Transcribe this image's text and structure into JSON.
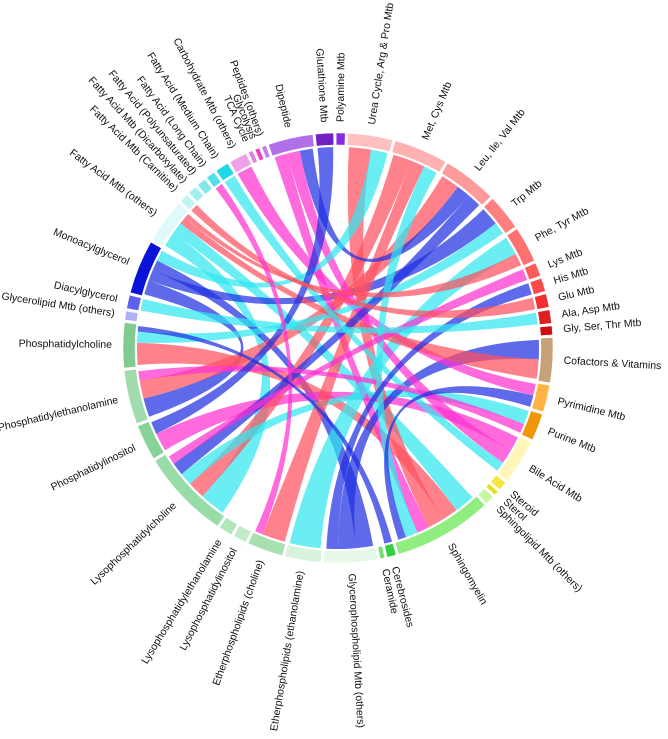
{
  "chart_data": {
    "type": "chord",
    "sectors": [
      {
        "name": "Polyamine Mtb",
        "color": "#8a2be2",
        "value": 2
      },
      {
        "name": "Urea Cycle, Arg & Pro Mtb",
        "color": "#ffc0c0",
        "value": 10
      },
      {
        "name": "Met, Cys Mtb",
        "color": "#ffb0b0",
        "value": 12
      },
      {
        "name": "Leu, Ile, Val Mtb",
        "color": "#ff9a9a",
        "value": 12
      },
      {
        "name": "Trp Mtb",
        "color": "#ff8080",
        "value": 8
      },
      {
        "name": "Phe, Tyr Mtb",
        "color": "#ff7070",
        "value": 8
      },
      {
        "name": "Lys Mtb",
        "color": "#ff5a5a",
        "value": 3
      },
      {
        "name": "His Mtb",
        "color": "#ff4848",
        "value": 3
      },
      {
        "name": "Glu Mtb",
        "color": "#f03030",
        "value": 3
      },
      {
        "name": "Ala, Asp Mtb",
        "color": "#e02020",
        "value": 3
      },
      {
        "name": "Gly, Ser, Thr Mtb",
        "color": "#d01010",
        "value": 2
      },
      {
        "name": "Cofactors & Vitamins",
        "color": "#c8a07a",
        "value": 10
      },
      {
        "name": "Pyrimidine Mtb",
        "color": "#ffb347",
        "value": 6
      },
      {
        "name": "Purine Mtb",
        "color": "#f0960a",
        "value": 6
      },
      {
        "name": "Bile Acid Mtb",
        "color": "#fff6b8",
        "value": 10
      },
      {
        "name": "Steroid",
        "color": "#f5e642",
        "value": 2
      },
      {
        "name": "Sterol",
        "color": "#e8e020",
        "value": 1
      },
      {
        "name": "Sphingolipid Mtb (others)",
        "color": "#c8f5a0",
        "value": 2
      },
      {
        "name": "Sphingomyelin",
        "color": "#90ee80",
        "value": 22
      },
      {
        "name": "Cerebrosides",
        "color": "#30d040",
        "value": 2
      },
      {
        "name": "Ceramide",
        "color": "#70e070",
        "value": 1
      },
      {
        "name": "Glycerophospholipid Mtb (others)",
        "color": "#e8f8e8",
        "value": 12
      },
      {
        "name": "Etherphospholipids (ethanolamine)",
        "color": "#d8f2dc",
        "value": 8
      },
      {
        "name": "Etherphospholipids (choline)",
        "color": "#a8e0b0",
        "value": 8
      },
      {
        "name": "Lysophosphatidylinositol",
        "color": "#c0ecc8",
        "value": 3
      },
      {
        "name": "Lysophosphatidylethanolamine",
        "color": "#b0e6bc",
        "value": 3
      },
      {
        "name": "Lysophosphatidylcholine",
        "color": "#98dca8",
        "value": 20
      },
      {
        "name": "Phosphatidylinositol",
        "color": "#88d498",
        "value": 8
      },
      {
        "name": "Phosphatidylethanolamine",
        "color": "#a0dcae",
        "value": 12
      },
      {
        "name": "Phosphatidylcholine",
        "color": "#80cc90",
        "value": 10
      },
      {
        "name": "Glycerolipid Mtb (others)",
        "color": "#b0b0f8",
        "value": 2
      },
      {
        "name": "Diacylglycerol",
        "color": "#6060f0",
        "value": 3
      },
      {
        "name": "Monoacylglycerol",
        "color": "#0a14d8",
        "value": 12
      },
      {
        "name": "Fatty Acid Mtb (others)",
        "color": "#e0fafa",
        "value": 10
      },
      {
        "name": "Fatty Acid Mtb (Carnitine)",
        "color": "#c0f4f4",
        "value": 2
      },
      {
        "name": "Fatty Acid Mtb (Dicarboxylate)",
        "color": "#a0eeee",
        "value": 2
      },
      {
        "name": "Fatty Acid (Polyunsaturated)",
        "color": "#80e8e8",
        "value": 2
      },
      {
        "name": "Fatty Acid (Long Chain)",
        "color": "#50e0e8",
        "value": 2
      },
      {
        "name": "Fatty Acid (Medium Chain)",
        "color": "#20d8e8",
        "value": 3
      },
      {
        "name": "Carbohydrate Mtb (others)",
        "color": "#f0a0e8",
        "value": 4
      },
      {
        "name": "TCA Cycle",
        "color": "#e080e0",
        "value": 1
      },
      {
        "name": "Glycolysis",
        "color": "#f040c0",
        "value": 1
      },
      {
        "name": "Peptides (others)",
        "color": "#c080f0",
        "value": 1
      },
      {
        "name": "Dipeptide",
        "color": "#b070e8",
        "value": 10
      },
      {
        "name": "Glutathione Mtb",
        "color": "#7020c0",
        "value": 4
      }
    ],
    "links": [
      {
        "source": "Fatty Acid Mtb (others)",
        "target": "Lysophosphatidylcholine",
        "value": 6,
        "color": "#30e8f0"
      },
      {
        "source": "Fatty Acid Mtb (others)",
        "target": "Sphingomyelin",
        "value": 5,
        "color": "#30e8f0"
      },
      {
        "source": "Monoacylglycerol",
        "target": "Phosphatidylethanolamine",
        "value": 4,
        "color": "#2030e0"
      },
      {
        "source": "Monoacylglycerol",
        "target": "Trp Mtb",
        "value": 3,
        "color": "#2030e0"
      },
      {
        "source": "Monoacylglycerol",
        "target": "Glycerophospholipid Mtb (others)",
        "value": 3,
        "color": "#2030e0"
      },
      {
        "source": "Phosphatidylcholine",
        "target": "Sphingomyelin",
        "value": 4,
        "color": "#ff5060"
      },
      {
        "source": "Phosphatidylethanolamine",
        "target": "Leu, Ile, Val Mtb",
        "value": 4,
        "color": "#ff5060"
      },
      {
        "source": "Phosphatidylinositol",
        "target": "Bile Acid Mtb",
        "value": 3,
        "color": "#ff30d0"
      },
      {
        "source": "Lysophosphatidylcholine",
        "target": "Met, Cys Mtb",
        "value": 4,
        "color": "#ff5060"
      },
      {
        "source": "Lysophosphatidylcholine",
        "target": "Purine Mtb",
        "value": 3,
        "color": "#30e8f0"
      },
      {
        "source": "Sphingomyelin",
        "target": "Urea Cycle, Arg & Pro Mtb",
        "value": 4,
        "color": "#ff5060"
      },
      {
        "source": "Sphingomyelin",
        "target": "Dipeptide",
        "value": 3,
        "color": "#ff30d0"
      },
      {
        "source": "Glycerophospholipid Mtb (others)",
        "target": "Cofactors & Vitamins",
        "value": 3,
        "color": "#2030e0"
      },
      {
        "source": "Etherphospholipids (ethanolamine)",
        "target": "Phe, Tyr Mtb",
        "value": 3,
        "color": "#30e8f0"
      },
      {
        "source": "Etherphospholipids (choline)",
        "target": "Met, Cys Mtb",
        "value": 3,
        "color": "#ff5060"
      },
      {
        "source": "Dipeptide",
        "target": "Bile Acid Mtb",
        "value": 3,
        "color": "#ff30d0"
      },
      {
        "source": "Dipeptide",
        "target": "Leu, Ile, Val Mtb",
        "value": 3,
        "color": "#2030e0"
      },
      {
        "source": "Carbohydrate Mtb (others)",
        "target": "Pyrimidine Mtb",
        "value": 2,
        "color": "#ff30d0"
      },
      {
        "source": "Trp Mtb",
        "target": "Phosphatidylcholine",
        "value": 2,
        "color": "#30e8f0"
      },
      {
        "source": "Cofactors & Vitamins",
        "target": "Fatty Acid Mtb (others)",
        "value": 3,
        "color": "#ff5060"
      },
      {
        "source": "Urea Cycle, Arg & Pro Mtb",
        "target": "Monoacylglycerol",
        "value": 3,
        "color": "#30e8f0"
      },
      {
        "source": "Leu, Ile, Val Mtb",
        "target": "Lysophosphatidylcholine",
        "value": 3,
        "color": "#2030e0"
      },
      {
        "source": "Bile Acid Mtb",
        "target": "Fatty Acid (Medium Chain)",
        "value": 2,
        "color": "#30e8f0"
      },
      {
        "source": "Purine Mtb",
        "target": "Phosphatidylethanolamine",
        "value": 2,
        "color": "#ff30d0"
      },
      {
        "source": "Glutathione Mtb",
        "target": "Phosphatidylinositol",
        "value": 2,
        "color": "#2030e0"
      },
      {
        "source": "Met, Cys Mtb",
        "target": "Sphingomyelin",
        "value": 3,
        "color": "#30e8f0"
      },
      {
        "source": "Phe, Tyr Mtb",
        "target": "Fatty Acid Mtb (others)",
        "value": 2,
        "color": "#ff5060"
      },
      {
        "source": "Lys Mtb",
        "target": "Lysophosphatidylcholine",
        "value": 2,
        "color": "#ff30d0"
      },
      {
        "source": "His Mtb",
        "target": "Glycerophospholipid Mtb (others)",
        "value": 2,
        "color": "#2030e0"
      },
      {
        "source": "Glu Mtb",
        "target": "Fatty Acid Mtb (Carnitine)",
        "value": 1,
        "color": "#ff5060"
      },
      {
        "source": "Ala, Asp Mtb",
        "target": "Diacylglycerol",
        "value": 1,
        "color": "#30e8f0"
      },
      {
        "source": "Pyrimidine Mtb",
        "target": "Sphingomyelin",
        "value": 2,
        "color": "#2030e0"
      },
      {
        "source": "Etherphospholipids (choline)",
        "target": "Fatty Acid (Long Chain)",
        "value": 1,
        "color": "#ff30d0"
      },
      {
        "source": "Cerebrosides",
        "target": "Phosphatidylcholine",
        "value": 1,
        "color": "#2030e0"
      }
    ]
  }
}
